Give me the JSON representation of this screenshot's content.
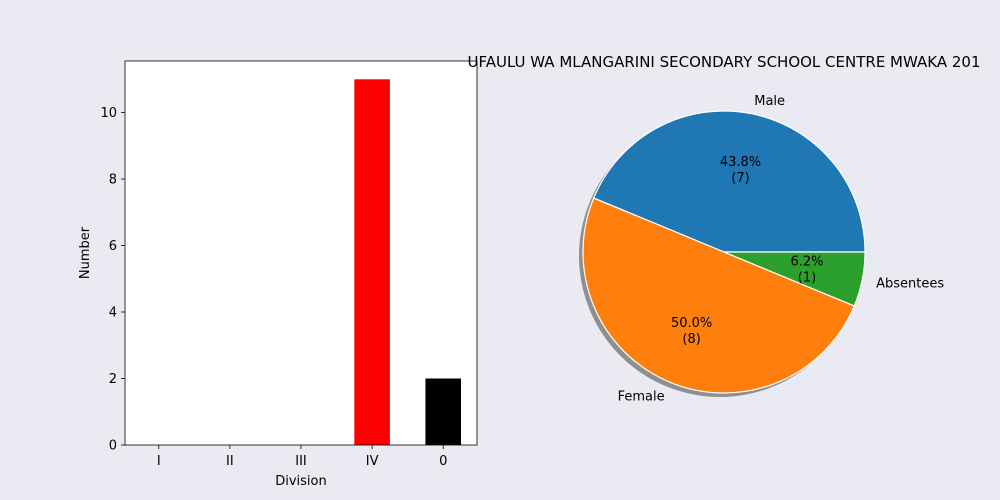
{
  "figure": {
    "background": "#eaeaf2"
  },
  "chart_data": [
    {
      "type": "bar",
      "title": "",
      "xlabel": "Division",
      "ylabel": "Number",
      "categories": [
        "I",
        "II",
        "III",
        "IV",
        "0"
      ],
      "values": [
        0,
        0,
        0,
        11,
        2
      ],
      "colors": [
        "#ff0000",
        "#ff0000",
        "#ff0000",
        "#ff0000",
        "#000000"
      ],
      "ylim": [
        0,
        11.55
      ],
      "yticks": [
        0,
        2,
        4,
        6,
        8,
        10
      ],
      "ytick_labels": [
        "0",
        "2",
        "4",
        "6",
        "8",
        "10"
      ],
      "grid": false
    },
    {
      "type": "pie",
      "title": "UFAULU WA MLANGARINI SECONDARY SCHOOL CENTRE MWAKA 201",
      "labels": [
        "Male",
        "Female",
        "Absentees"
      ],
      "values": [
        7,
        8,
        1
      ],
      "percent_labels": [
        "43.8%",
        "50.0%",
        "6.2%"
      ],
      "count_labels": [
        "(7)",
        "(8)",
        "(1)"
      ],
      "colors": [
        "#1f77b4",
        "#ff7f0e",
        "#2ca02c"
      ],
      "shadow": true
    }
  ]
}
